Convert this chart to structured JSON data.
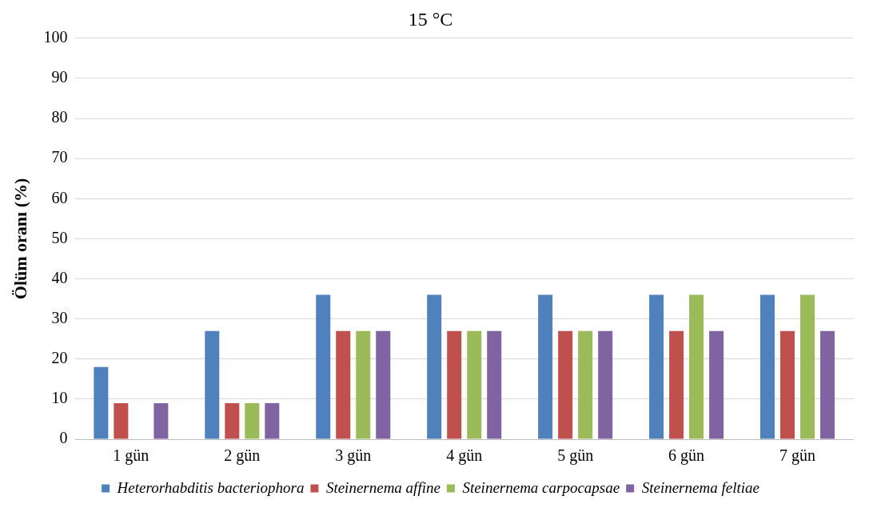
{
  "chart_data": {
    "type": "bar",
    "title": "15 °C",
    "ylabel": "Ölüm oranı (%)",
    "categories": [
      "1 gün",
      "2 gün",
      "3 gün",
      "4 gün",
      "5 gün",
      "6 gün",
      "7 gün"
    ],
    "series": [
      {
        "name": "Heterorhabditis bacteriophora",
        "color": "#4f81bd",
        "values": [
          18,
          27,
          36,
          36,
          36,
          36,
          36
        ]
      },
      {
        "name": "Steinernema affine",
        "color": "#c0504d",
        "values": [
          9,
          9,
          27,
          27,
          27,
          27,
          27
        ]
      },
      {
        "name": "Steinernema carpocapsae",
        "color": "#9bbb59",
        "values": [
          0,
          9,
          27,
          27,
          27,
          36,
          36
        ]
      },
      {
        "name": "Steinernema feltiae",
        "color": "#8064a2",
        "values": [
          9,
          9,
          27,
          27,
          27,
          27,
          27
        ]
      }
    ],
    "ylim": [
      0,
      100
    ],
    "yticks": [
      0,
      10,
      20,
      30,
      40,
      50,
      60,
      70,
      80,
      90,
      100
    ],
    "grid": "y",
    "legend": "bottom"
  }
}
